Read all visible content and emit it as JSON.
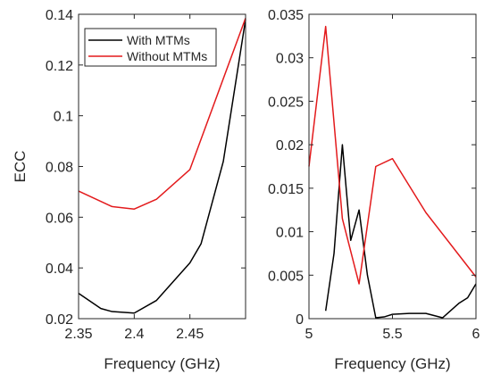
{
  "chart_data": [
    {
      "type": "line",
      "xlabel": "Frequency (GHz)",
      "ylabel": "ECC",
      "xlim": [
        2.35,
        2.5
      ],
      "ylim": [
        0.02,
        0.14
      ],
      "xticks": [
        2.35,
        2.4,
        2.45
      ],
      "xtick_labels": [
        "2.35",
        "2.4",
        "2.45"
      ],
      "yticks": [
        0.02,
        0.04,
        0.06,
        0.08,
        0.1,
        0.12,
        0.14
      ],
      "ytick_labels": [
        "0.02",
        "0.04",
        "0.06",
        "0.08",
        "0.1",
        "0.12",
        "0.14"
      ],
      "grid": false,
      "legend": "top-left",
      "series": [
        {
          "name": "With MTMs",
          "color": "#000000",
          "x": [
            2.35,
            2.37,
            2.38,
            2.4,
            2.42,
            2.45,
            2.46,
            2.48,
            2.5
          ],
          "y": [
            0.03,
            0.024,
            0.0228,
            0.0222,
            0.0272,
            0.042,
            0.0495,
            0.082,
            0.138
          ]
        },
        {
          "name": "Without MTMs",
          "color": "#e31a1c",
          "x": [
            2.35,
            2.38,
            2.4,
            2.42,
            2.45,
            2.5
          ],
          "y": [
            0.0703,
            0.0642,
            0.0632,
            0.0671,
            0.0788,
            0.1385
          ]
        }
      ]
    },
    {
      "type": "line",
      "xlabel": "Frequency (GHz)",
      "ylabel": "",
      "xlim": [
        5,
        6
      ],
      "ylim": [
        0,
        0.035
      ],
      "xticks": [
        5,
        5.5,
        6
      ],
      "xtick_labels": [
        "5",
        "5.5",
        "6"
      ],
      "yticks": [
        0,
        0.005,
        0.01,
        0.015,
        0.02,
        0.025,
        0.03,
        0.035
      ],
      "ytick_labels": [
        "0",
        "0.005",
        "0.01",
        "0.015",
        "0.02",
        "0.025",
        "0.03",
        "0.035"
      ],
      "grid": false,
      "series": [
        {
          "name": "With MTMs",
          "color": "#000000",
          "x": [
            5.1,
            5.15,
            5.2,
            5.25,
            5.3,
            5.35,
            5.4,
            5.45,
            5.5,
            5.6,
            5.7,
            5.8,
            5.9,
            5.95,
            6.0
          ],
          "y": [
            0.0009,
            0.0075,
            0.02,
            0.009,
            0.0125,
            0.005,
            0.0001,
            0.0002,
            0.0005,
            0.0006,
            0.0006,
            0.0001,
            0.0018,
            0.0024,
            0.004
          ]
        },
        {
          "name": "Without MTMs",
          "color": "#e31a1c",
          "x": [
            5.0,
            5.1,
            5.2,
            5.3,
            5.4,
            5.5,
            5.7,
            6.0
          ],
          "y": [
            0.0175,
            0.0336,
            0.0115,
            0.004,
            0.0175,
            0.0184,
            0.0122,
            0.0048
          ]
        }
      ]
    }
  ]
}
